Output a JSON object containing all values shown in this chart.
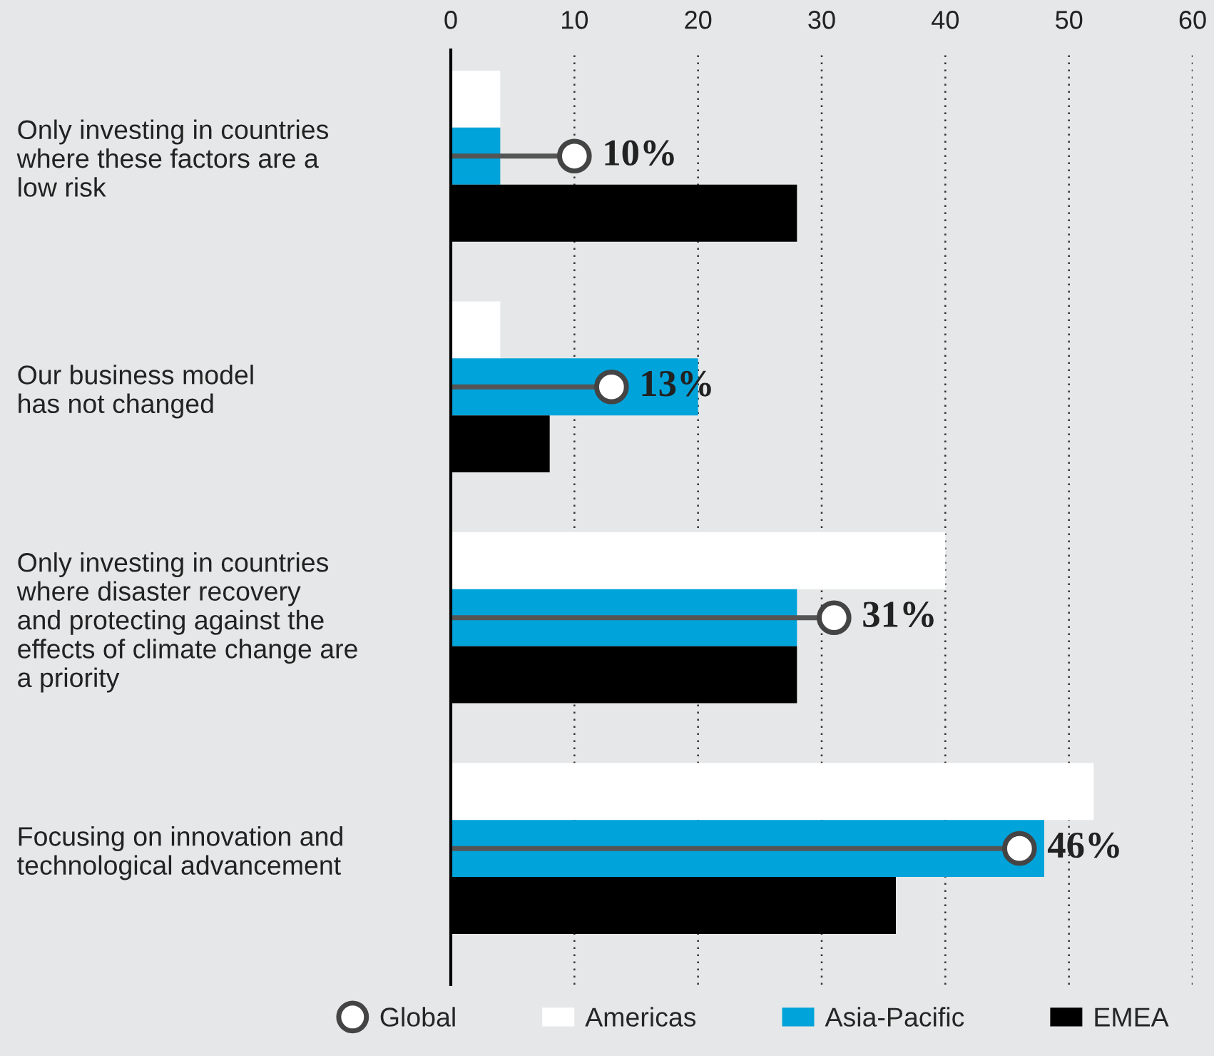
{
  "chart_data": {
    "type": "bar",
    "orientation": "horizontal",
    "categories": [
      "Only investing in countries\nwhere these factors are a\nlow risk",
      "Our business model\nhas not changed",
      "Only investing in countries\nwhere disaster recovery\nand protecting against the\neffects of climate change are\na priority",
      "Focusing on innovation and\ntechnological advancement"
    ],
    "series": [
      {
        "name": "Global",
        "type": "lollipop",
        "color": "#ffffff",
        "marker": "circle",
        "values": [
          10,
          13,
          31,
          46
        ],
        "value_labels": [
          "10%",
          "13%",
          "31%",
          "46%"
        ]
      },
      {
        "name": "Americas",
        "color": "#ffffff",
        "values": [
          4,
          4,
          40,
          52
        ]
      },
      {
        "name": "Asia-Pacific",
        "color": "#00a3da",
        "values": [
          4,
          20,
          28,
          48
        ]
      },
      {
        "name": "EMEA",
        "color": "#000000",
        "values": [
          28,
          8,
          28,
          36
        ]
      }
    ],
    "xlim": [
      0,
      60
    ],
    "xticks": [
      0,
      10,
      20,
      30,
      40,
      50,
      60
    ],
    "grid": "x",
    "legend": "bottom"
  }
}
